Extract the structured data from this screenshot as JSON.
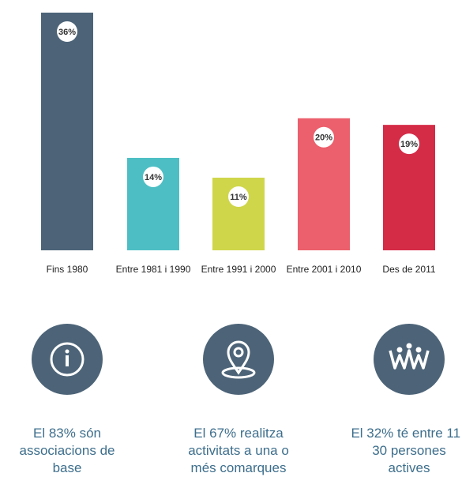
{
  "chart_data": {
    "type": "bar",
    "categories": [
      "Fins 1980",
      "Entre 1981 i 1990",
      "Entre 1991 i 2000",
      "Entre 2001 i 2010",
      "Des de 2011"
    ],
    "values": [
      36,
      14,
      11,
      20,
      19
    ],
    "value_labels": [
      "36%",
      "14%",
      "11%",
      "20%",
      "19%"
    ],
    "colors": [
      "#4d6478",
      "#4dbfc4",
      "#cfd64a",
      "#ec5f6c",
      "#d42b47"
    ]
  },
  "highlights": [
    {
      "text": "El 83% són associacions de base"
    },
    {
      "text": "El 67% realitza activitats a una o més comarques"
    },
    {
      "text": "El 32% té entre 11 i 30 persones actives"
    }
  ]
}
